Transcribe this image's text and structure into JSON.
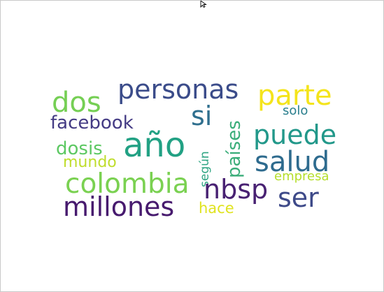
{
  "wordcloud": {
    "words": [
      {
        "text": "personas",
        "color": "#3b4c8a"
      },
      {
        "text": "parte",
        "color": "#f4e41c"
      },
      {
        "text": "dos",
        "color": "#75cf54"
      },
      {
        "text": "si",
        "color": "#2f6f8e"
      },
      {
        "text": "solo",
        "color": "#2b7f8e"
      },
      {
        "text": "facebook",
        "color": "#443b84"
      },
      {
        "text": "puede",
        "color": "#22988a"
      },
      {
        "text": "año",
        "color": "#22a184"
      },
      {
        "text": "dosis",
        "color": "#5cc862"
      },
      {
        "text": "mundo",
        "color": "#bfdd2d"
      },
      {
        "text": "según",
        "color": "#2ea482"
      },
      {
        "text": "países",
        "color": "#3aad79"
      },
      {
        "text": "salud",
        "color": "#2e6b8e"
      },
      {
        "text": "colombia",
        "color": "#7ad151"
      },
      {
        "text": "nbsp",
        "color": "#482172"
      },
      {
        "text": "empresa",
        "color": "#b5de2b"
      },
      {
        "text": "millones",
        "color": "#471a6e"
      },
      {
        "text": "hace",
        "color": "#e0e31f"
      },
      {
        "text": "ser",
        "color": "#3e4a89"
      }
    ]
  }
}
